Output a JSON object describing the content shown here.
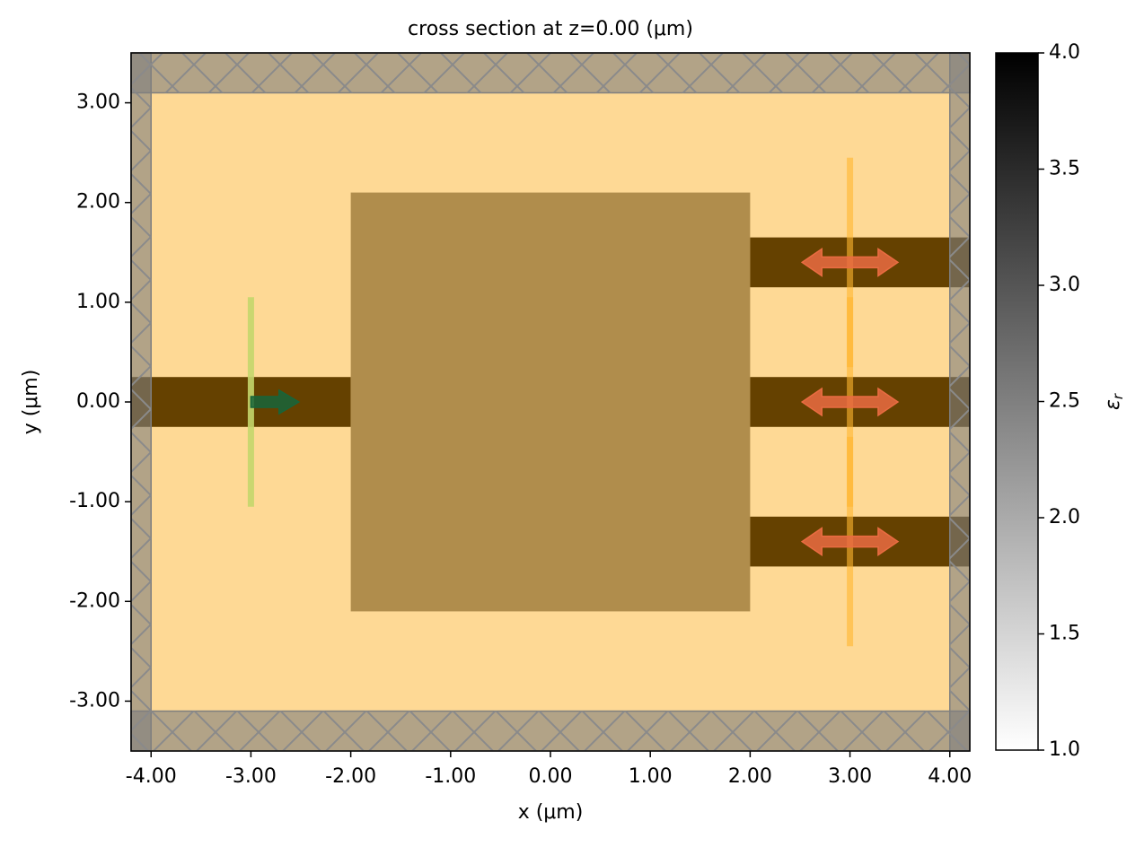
{
  "chart_data": {
    "type": "simulation",
    "title": "cross section at z=0.00 (μm)",
    "x_label": "x (μm)",
    "y_label": "y (μm)",
    "xlim": [
      -4.2,
      4.2
    ],
    "ylim": [
      -3.5,
      3.5
    ],
    "xticks": [
      {
        "value": -4,
        "label": "-4.00"
      },
      {
        "value": -3,
        "label": "-3.00"
      },
      {
        "value": -2,
        "label": "-2.00"
      },
      {
        "value": -1,
        "label": "-1.00"
      },
      {
        "value": 0,
        "label": "0.00"
      },
      {
        "value": 1,
        "label": "1.00"
      },
      {
        "value": 2,
        "label": "2.00"
      },
      {
        "value": 3,
        "label": "3.00"
      },
      {
        "value": 4,
        "label": "4.00"
      }
    ],
    "yticks": [
      {
        "value": -3,
        "label": "-3.00"
      },
      {
        "value": -2,
        "label": "-2.00"
      },
      {
        "value": -1,
        "label": "-1.00"
      },
      {
        "value": 0,
        "label": "0.00"
      },
      {
        "value": 1,
        "label": "1.00"
      },
      {
        "value": 2,
        "label": "2.00"
      },
      {
        "value": 3,
        "label": "3.00"
      }
    ],
    "background_color": "#fed995",
    "structures": [
      {
        "x": [
          -4.2,
          -2
        ],
        "y": [
          -0.25,
          0.25
        ],
        "color": "#654100"
      },
      {
        "x": [
          -2,
          2
        ],
        "y": [
          -2.1,
          2.1
        ],
        "color": "#b08d4c"
      },
      {
        "x": [
          2,
          4.2
        ],
        "y": [
          1.15,
          1.65
        ],
        "color": "#654100"
      },
      {
        "x": [
          2,
          4.2
        ],
        "y": [
          -0.25,
          0.25
        ],
        "color": "#654100"
      },
      {
        "x": [
          2,
          4.2
        ],
        "y": [
          -1.65,
          -1.15
        ],
        "color": "#654100"
      }
    ],
    "pml_regions": [
      {
        "x": [
          -4.2,
          -4
        ],
        "y": [
          -3.5,
          3.5
        ]
      },
      {
        "x": [
          4,
          4.2
        ],
        "y": [
          -3.5,
          3.5
        ]
      },
      {
        "x": [
          -4.2,
          4.2
        ],
        "y": [
          3.1,
          3.5
        ]
      },
      {
        "x": [
          -4.2,
          4.2
        ],
        "y": [
          -3.5,
          -3.1
        ]
      }
    ],
    "pml_color": "#7f7f7f",
    "source": {
      "x": -3,
      "y": [
        -1.05,
        1.05
      ],
      "color": "#c4d66b",
      "arrow_color": "#17653a"
    },
    "monitors": [
      {
        "x": 3,
        "y": [
          0.35,
          2.45
        ]
      },
      {
        "x": 3,
        "y": [
          -1.05,
          1.05
        ]
      },
      {
        "x": 3,
        "y": [
          -2.45,
          -0.35
        ]
      }
    ],
    "monitor_color": "#ffb52e",
    "arrow_color": "#ea6c42",
    "colorbar": {
      "lim": [
        1.0,
        4.0
      ],
      "label_symbol": "ε",
      "label_subscript": "r",
      "ticks": [
        {
          "value": 1,
          "label": "1.0"
        },
        1.5,
        {
          "value": 2,
          "label": "2.0"
        },
        2.5,
        {
          "value": 3,
          "label": "3.0"
        },
        3.5,
        {
          "value": 4,
          "label": "4.0"
        }
      ]
    }
  }
}
